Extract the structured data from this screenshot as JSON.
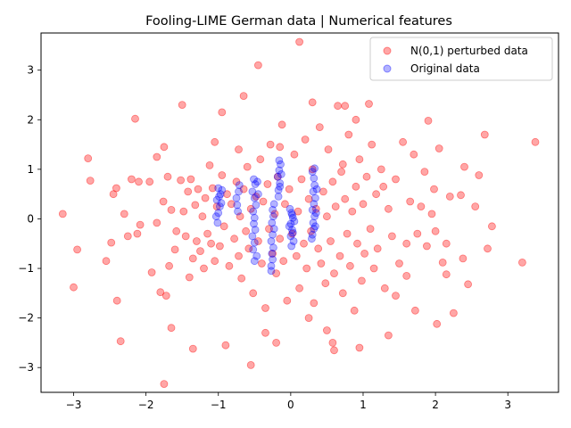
{
  "chart_data": {
    "type": "scatter",
    "title": "Fooling-LIME German data | Numerical features",
    "xlabel": "",
    "ylabel": "",
    "xlim": [
      -3.45,
      3.7
    ],
    "ylim": [
      -3.5,
      3.75
    ],
    "xticks": [
      -3,
      -2,
      -1,
      0,
      1,
      2,
      3
    ],
    "yticks": [
      -3,
      -2,
      -1,
      0,
      1,
      2,
      3
    ],
    "xtick_labels": [
      "−3",
      "−2",
      "−1",
      "0",
      "1",
      "2",
      "3"
    ],
    "ytick_labels": [
      "−3",
      "−2",
      "−1",
      "0",
      "1",
      "2",
      "3"
    ],
    "grid": false,
    "legend": "top-right",
    "series": [
      {
        "name": "N(0,1) perturbed data",
        "color": "#ff0000",
        "alpha": 0.35,
        "marker": "circle",
        "values": [
          [
            -3.15,
            0.1
          ],
          [
            -2.95,
            -0.62
          ],
          [
            -3.0,
            -1.38
          ],
          [
            -2.8,
            1.22
          ],
          [
            -2.77,
            0.77
          ],
          [
            -2.55,
            -0.85
          ],
          [
            -2.48,
            -0.48
          ],
          [
            -2.45,
            0.5
          ],
          [
            -2.41,
            0.62
          ],
          [
            -2.4,
            -1.65
          ],
          [
            -2.35,
            -2.47
          ],
          [
            -2.3,
            0.1
          ],
          [
            -2.2,
            0.8
          ],
          [
            -2.15,
            2.02
          ],
          [
            -2.12,
            -0.3
          ],
          [
            -2.1,
            0.75
          ],
          [
            -2.08,
            -0.12
          ],
          [
            -1.95,
            0.75
          ],
          [
            -1.92,
            -1.08
          ],
          [
            -1.85,
            -0.08
          ],
          [
            -1.8,
            -1.48
          ],
          [
            -1.76,
            0.35
          ],
          [
            -1.72,
            -1.55
          ],
          [
            -1.7,
            0.85
          ],
          [
            -1.68,
            -0.95
          ],
          [
            -1.65,
            0.18
          ],
          [
            -1.6,
            -0.62
          ],
          [
            -1.58,
            -0.25
          ],
          [
            -1.52,
            0.78
          ],
          [
            -1.48,
            0.15
          ],
          [
            -1.45,
            -0.35
          ],
          [
            -1.42,
            0.55
          ],
          [
            -1.4,
            -1.18
          ],
          [
            -1.38,
            0.8
          ],
          [
            -1.35,
            -0.8
          ],
          [
            -1.32,
            0.28
          ],
          [
            -1.3,
            -0.45
          ],
          [
            -1.28,
            0.6
          ],
          [
            -1.25,
            -0.65
          ],
          [
            -1.22,
            0.05
          ],
          [
            -1.2,
            -1.0
          ],
          [
            -1.18,
            0.42
          ],
          [
            -1.15,
            -0.3
          ],
          [
            -1.12,
            1.08
          ],
          [
            -1.1,
            -0.5
          ],
          [
            -1.08,
            0.62
          ],
          [
            -1.05,
            -0.85
          ],
          [
            -1.02,
            0.25
          ],
          [
            -0.98,
            -0.55
          ],
          [
            -0.95,
            0.88
          ],
          [
            -0.92,
            -0.15
          ],
          [
            -0.88,
            0.5
          ],
          [
            -0.85,
            -0.95
          ],
          [
            -0.82,
            0.3
          ],
          [
            -0.78,
            -0.4
          ],
          [
            -0.75,
            0.75
          ],
          [
            -0.72,
            -0.75
          ],
          [
            -0.7,
            0.05
          ],
          [
            -0.68,
            -1.2
          ],
          [
            -0.65,
            0.6
          ],
          [
            -0.62,
            -0.25
          ],
          [
            -0.6,
            1.05
          ],
          [
            -0.58,
            -0.6
          ],
          [
            -0.55,
            0.2
          ],
          [
            -0.52,
            -1.5
          ],
          [
            -0.48,
            0.45
          ],
          [
            -0.45,
            -0.45
          ],
          [
            -0.42,
            1.2
          ],
          [
            -0.4,
            -0.9
          ],
          [
            -0.38,
            0.35
          ],
          [
            -0.35,
            -1.8
          ],
          [
            -0.32,
            0.7
          ],
          [
            -0.3,
            -0.2
          ],
          [
            -0.28,
            1.5
          ],
          [
            -0.25,
            -0.7
          ],
          [
            -0.22,
            0.1
          ],
          [
            -0.2,
            -1.1
          ],
          [
            -0.18,
            0.85
          ],
          [
            -0.15,
            -0.4
          ],
          [
            -0.12,
            1.9
          ],
          [
            -0.1,
            -0.85
          ],
          [
            -0.08,
            0.3
          ],
          [
            -0.05,
            -1.65
          ],
          [
            -0.02,
            0.6
          ],
          [
            0.02,
            -0.3
          ],
          [
            0.05,
            1.3
          ],
          [
            0.08,
            -0.75
          ],
          [
            0.1,
            0.15
          ],
          [
            0.12,
            -1.4
          ],
          [
            0.15,
            0.8
          ],
          [
            0.18,
            -0.5
          ],
          [
            0.2,
            1.6
          ],
          [
            0.22,
            -1.0
          ],
          [
            0.25,
            0.4
          ],
          [
            0.28,
            -0.25
          ],
          [
            0.3,
            1.0
          ],
          [
            0.32,
            -1.7
          ],
          [
            0.35,
            0.2
          ],
          [
            0.38,
            -0.6
          ],
          [
            0.4,
            1.85
          ],
          [
            0.42,
            -0.9
          ],
          [
            0.45,
            0.55
          ],
          [
            0.48,
            -1.3
          ],
          [
            0.5,
            0.05
          ],
          [
            0.52,
            1.4
          ],
          [
            0.55,
            -0.45
          ],
          [
            0.58,
            0.75
          ],
          [
            0.6,
            -1.1
          ],
          [
            0.62,
            0.25
          ],
          [
            0.65,
            2.28
          ],
          [
            0.68,
            -0.75
          ],
          [
            0.7,
            0.95
          ],
          [
            0.72,
            -1.5
          ],
          [
            0.75,
            0.4
          ],
          [
            0.78,
            -0.3
          ],
          [
            0.8,
            1.7
          ],
          [
            0.82,
            -0.95
          ],
          [
            0.85,
            0.15
          ],
          [
            0.88,
            -1.85
          ],
          [
            0.9,
            0.65
          ],
          [
            0.92,
            -0.5
          ],
          [
            0.95,
            1.2
          ],
          [
            0.98,
            -1.25
          ],
          [
            1.0,
            0.3
          ],
          [
            1.02,
            -0.7
          ],
          [
            1.05,
            0.85
          ],
          [
            1.08,
            2.32
          ],
          [
            1.1,
            -0.2
          ],
          [
            1.12,
            1.5
          ],
          [
            1.15,
            -1.0
          ],
          [
            1.18,
            0.5
          ],
          [
            1.2,
            -0.6
          ],
          [
            1.25,
            1.0
          ],
          [
            1.3,
            -1.4
          ],
          [
            1.35,
            0.2
          ],
          [
            1.4,
            -0.35
          ],
          [
            1.45,
            0.8
          ],
          [
            1.5,
            -0.9
          ],
          [
            1.55,
            1.55
          ],
          [
            1.6,
            -0.5
          ],
          [
            1.65,
            0.35
          ],
          [
            1.7,
            1.3
          ],
          [
            1.72,
            -1.85
          ],
          [
            1.75,
            -0.3
          ],
          [
            1.8,
            0.25
          ],
          [
            1.85,
            0.95
          ],
          [
            1.88,
            -0.55
          ],
          [
            1.9,
            1.98
          ],
          [
            1.95,
            0.1
          ],
          [
            1.98,
            0.6
          ],
          [
            2.0,
            -0.25
          ],
          [
            2.02,
            -2.12
          ],
          [
            2.05,
            1.42
          ],
          [
            2.1,
            -0.88
          ],
          [
            2.15,
            -1.12
          ],
          [
            2.2,
            0.45
          ],
          [
            2.25,
            -1.9
          ],
          [
            2.35,
            0.48
          ],
          [
            2.38,
            -0.8
          ],
          [
            2.4,
            1.05
          ],
          [
            2.45,
            -1.32
          ],
          [
            2.55,
            0.25
          ],
          [
            2.6,
            0.88
          ],
          [
            2.68,
            1.7
          ],
          [
            2.72,
            -0.6
          ],
          [
            2.78,
            -0.15
          ],
          [
            3.2,
            -0.88
          ],
          [
            3.38,
            1.55
          ],
          [
            0.12,
            3.57
          ],
          [
            -0.45,
            3.1
          ],
          [
            -0.65,
            2.48
          ],
          [
            -0.95,
            2.15
          ],
          [
            -1.5,
            2.3
          ],
          [
            -1.75,
            1.45
          ],
          [
            -0.9,
            -2.55
          ],
          [
            -1.35,
            -2.62
          ],
          [
            -1.65,
            -2.2
          ],
          [
            -1.75,
            -3.33
          ],
          [
            -0.55,
            -2.95
          ],
          [
            -0.35,
            -2.3
          ],
          [
            0.58,
            -2.5
          ],
          [
            0.6,
            -2.65
          ],
          [
            0.95,
            -2.6
          ],
          [
            1.35,
            -2.35
          ],
          [
            0.3,
            2.35
          ],
          [
            0.75,
            2.28
          ],
          [
            0.9,
            2.0
          ],
          [
            -0.15,
            1.45
          ],
          [
            0.25,
            -2.0
          ],
          [
            1.6,
            -1.15
          ],
          [
            -2.25,
            -0.35
          ],
          [
            2.15,
            -0.5
          ],
          [
            0.5,
            -2.25
          ],
          [
            -0.2,
            -2.5
          ],
          [
            -1.05,
            1.55
          ],
          [
            1.28,
            0.65
          ],
          [
            -1.85,
            1.25
          ],
          [
            1.45,
            -1.55
          ],
          [
            0.72,
            1.1
          ],
          [
            -0.72,
            1.4
          ]
        ]
      },
      {
        "name": "Original data",
        "color": "#0000ff",
        "alpha": 0.3,
        "marker": "circle",
        "values": [
          [
            -1.0,
            0.12
          ],
          [
            -0.98,
            0.25
          ],
          [
            -1.02,
            0.38
          ],
          [
            -0.97,
            0.5
          ],
          [
            -1.0,
            0.62
          ],
          [
            -1.03,
            0.05
          ],
          [
            -0.96,
            0.32
          ],
          [
            -1.01,
            -0.08
          ],
          [
            -0.99,
            0.45
          ],
          [
            -0.95,
            0.58
          ],
          [
            -0.75,
            0.42
          ],
          [
            -0.72,
            0.55
          ],
          [
            -0.74,
            0.28
          ],
          [
            -0.71,
            0.68
          ],
          [
            -0.73,
            0.15
          ],
          [
            -0.52,
            -0.62
          ],
          [
            -0.5,
            -0.48
          ],
          [
            -0.53,
            -0.35
          ],
          [
            -0.49,
            -0.22
          ],
          [
            -0.51,
            -0.1
          ],
          [
            -0.5,
            0.02
          ],
          [
            -0.52,
            0.15
          ],
          [
            -0.48,
            0.28
          ],
          [
            -0.5,
            0.42
          ],
          [
            -0.53,
            0.55
          ],
          [
            -0.49,
            0.7
          ],
          [
            -0.51,
            0.8
          ],
          [
            -0.47,
            -0.75
          ],
          [
            -0.45,
            0.5
          ],
          [
            -0.46,
            0.75
          ],
          [
            -0.27,
            -0.95
          ],
          [
            -0.25,
            -0.82
          ],
          [
            -0.26,
            -0.7
          ],
          [
            -0.24,
            -0.58
          ],
          [
            -0.27,
            -0.45
          ],
          [
            -0.25,
            -0.32
          ],
          [
            -0.23,
            -0.2
          ],
          [
            -0.26,
            -0.08
          ],
          [
            -0.24,
            0.05
          ],
          [
            -0.25,
            0.18
          ],
          [
            -0.27,
            -1.05
          ],
          [
            -0.23,
            0.3
          ],
          [
            -0.17,
            0.58
          ],
          [
            -0.15,
            0.72
          ],
          [
            -0.18,
            0.85
          ],
          [
            -0.16,
            0.98
          ],
          [
            -0.14,
            1.1
          ],
          [
            -0.17,
            0.45
          ],
          [
            -0.15,
            0.65
          ],
          [
            -0.13,
            0.9
          ],
          [
            0.0,
            -0.35
          ],
          [
            0.02,
            -0.22
          ],
          [
            0.0,
            -0.1
          ],
          [
            0.03,
            0.02
          ],
          [
            0.01,
            0.12
          ],
          [
            0.04,
            -0.45
          ],
          [
            0.02,
            0.08
          ],
          [
            0.05,
            -0.05
          ],
          [
            -0.02,
            -0.15
          ],
          [
            0.03,
            -0.28
          ],
          [
            0.3,
            -0.32
          ],
          [
            0.32,
            -0.2
          ],
          [
            0.31,
            -0.08
          ],
          [
            0.33,
            0.05
          ],
          [
            0.3,
            0.18
          ],
          [
            0.32,
            0.3
          ],
          [
            0.34,
            0.42
          ],
          [
            0.31,
            0.55
          ],
          [
            0.33,
            0.68
          ],
          [
            0.32,
            0.82
          ],
          [
            0.3,
            0.95
          ],
          [
            0.35,
            0.12
          ],
          [
            0.29,
            -0.4
          ],
          [
            0.36,
            0.6
          ],
          [
            0.34,
            -0.15
          ],
          [
            -0.01,
            0.2
          ],
          [
            0.01,
            -0.55
          ],
          [
            -0.5,
            -0.85
          ],
          [
            0.33,
            1.02
          ],
          [
            -0.16,
            1.18
          ]
        ]
      }
    ]
  }
}
